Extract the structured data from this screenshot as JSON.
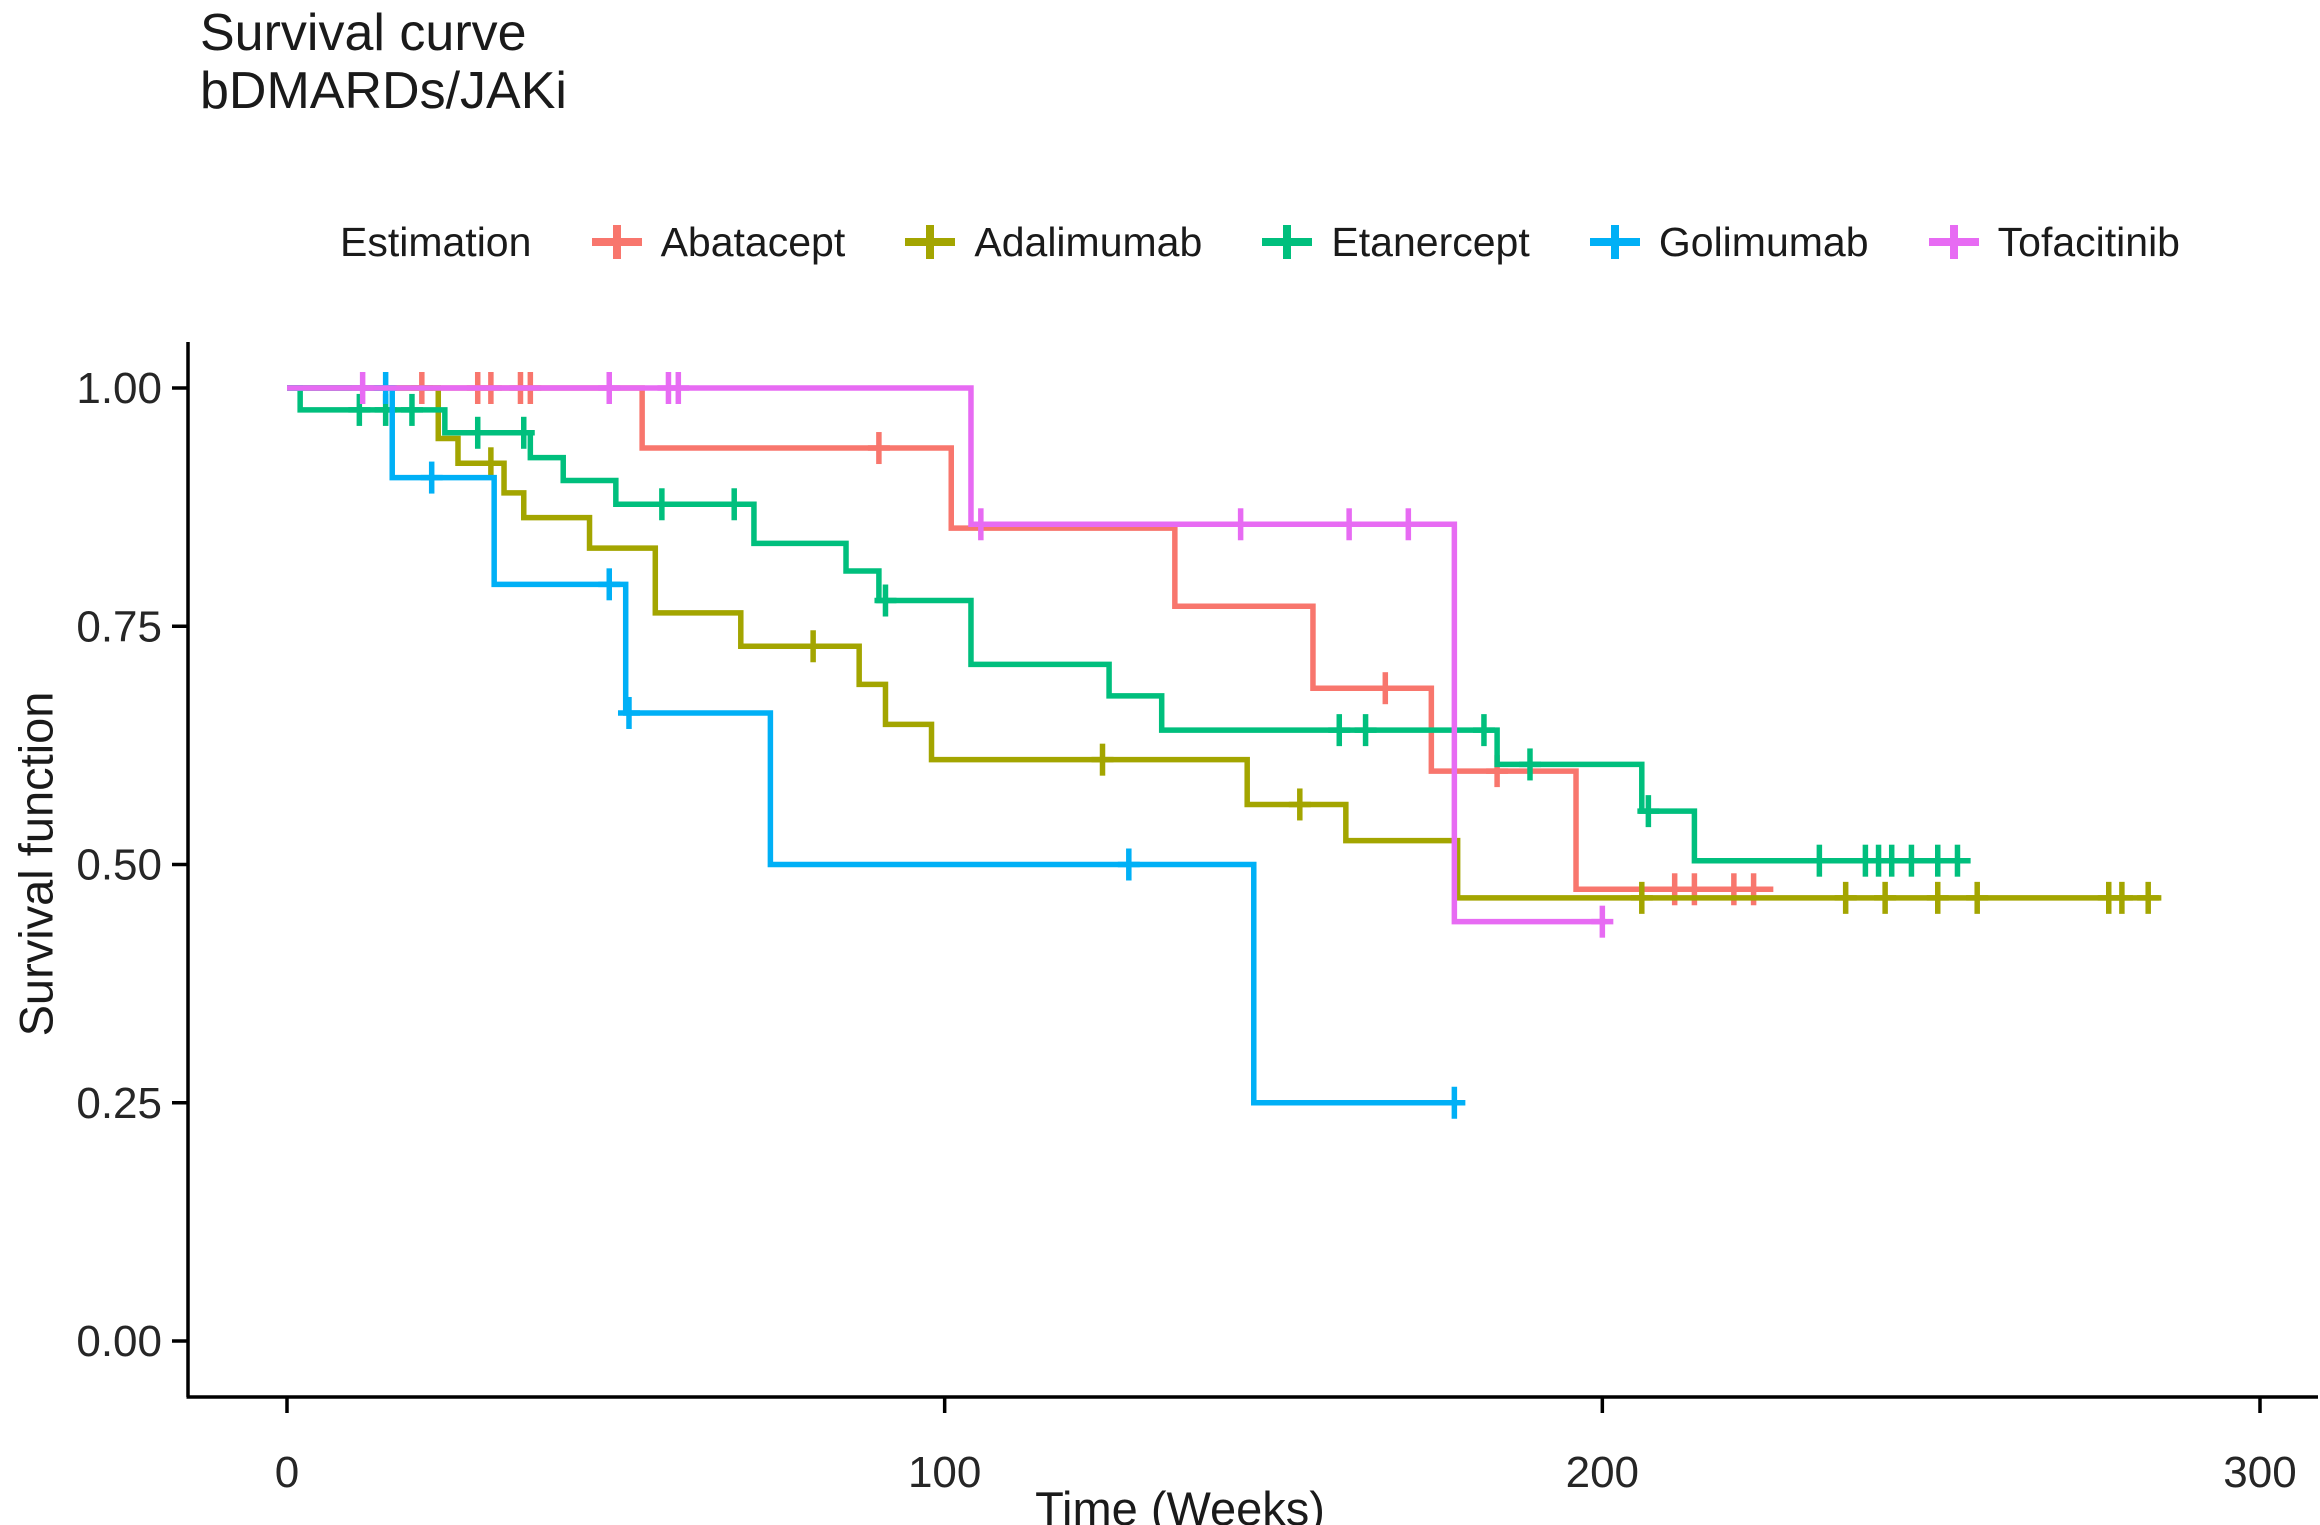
{
  "title": {
    "line1": "Survival curve",
    "line2": "bDMARDs/JAKi"
  },
  "legend": {
    "title": "Estimation",
    "items": [
      {
        "label": "Abatacept",
        "color": "#F8766D"
      },
      {
        "label": "Adalimumab",
        "color": "#A3A500"
      },
      {
        "label": "Etanercept",
        "color": "#00BF7D"
      },
      {
        "label": "Golimumab",
        "color": "#00B0F6"
      },
      {
        "label": "Tofacitinib",
        "color": "#E76BF3"
      }
    ]
  },
  "axes": {
    "x": {
      "label": "Time (Weeks)",
      "tick_labels": [
        "0",
        "100",
        "200",
        "300"
      ],
      "tick_values": [
        0,
        100,
        200,
        300
      ]
    },
    "y": {
      "label": "Survival function",
      "tick_labels": [
        "1.00",
        "0.75",
        "0.50",
        "0.25",
        "0.00"
      ],
      "tick_values": [
        1.0,
        0.75,
        0.5,
        0.25,
        0.0
      ]
    }
  },
  "chart_data": {
    "type": "line",
    "subtype": "kaplan-meier-step-curves",
    "title": "Survival curve bDMARDs/JAKi",
    "xlabel": "Time (Weeks)",
    "ylabel": "Survival function",
    "xlim": [
      0,
      310
    ],
    "ylim": [
      0,
      1.04
    ],
    "grid": false,
    "legend_position": "top",
    "censor_mark": "plus",
    "series": [
      {
        "name": "Abatacept",
        "color": "#F8766D",
        "steps": [
          [
            0,
            1.0
          ],
          [
            54,
            0.937
          ],
          [
            101,
            0.853
          ],
          [
            135,
            0.771
          ],
          [
            156,
            0.685
          ],
          [
            174,
            0.598
          ],
          [
            196,
            0.474
          ]
        ],
        "end_t": 226,
        "censors": [
          [
            20.5,
            1.0
          ],
          [
            29,
            1.0
          ],
          [
            31,
            1.0
          ],
          [
            35.5,
            1.0
          ],
          [
            37,
            1.0
          ],
          [
            90,
            0.937
          ],
          [
            167,
            0.685
          ],
          [
            184,
            0.598
          ],
          [
            211,
            0.474
          ],
          [
            214,
            0.474
          ],
          [
            220,
            0.474
          ],
          [
            223,
            0.474
          ]
        ]
      },
      {
        "name": "Adalimumab",
        "color": "#A3A500",
        "steps": [
          [
            0,
            1.0
          ],
          [
            23,
            0.947
          ],
          [
            26,
            0.921
          ],
          [
            33,
            0.89
          ],
          [
            36,
            0.864
          ],
          [
            46,
            0.832
          ],
          [
            56,
            0.764
          ],
          [
            69,
            0.729
          ],
          [
            87,
            0.689
          ],
          [
            91,
            0.647
          ],
          [
            98,
            0.61
          ],
          [
            146,
            0.563
          ],
          [
            161,
            0.525
          ],
          [
            178,
            0.465
          ]
        ],
        "end_t": 285,
        "censors": [
          [
            31,
            0.921
          ],
          [
            80,
            0.729
          ],
          [
            124,
            0.61
          ],
          [
            154,
            0.563
          ],
          [
            206,
            0.465
          ],
          [
            237,
            0.465
          ],
          [
            243,
            0.465
          ],
          [
            251,
            0.465
          ],
          [
            257,
            0.465
          ],
          [
            277,
            0.465
          ],
          [
            279,
            0.465
          ],
          [
            283,
            0.465
          ]
        ]
      },
      {
        "name": "Etanercept",
        "color": "#00BF7D",
        "steps": [
          [
            0,
            1.0
          ],
          [
            2,
            0.977
          ],
          [
            24,
            0.953
          ],
          [
            37,
            0.927
          ],
          [
            42,
            0.903
          ],
          [
            50,
            0.878
          ],
          [
            71,
            0.837
          ],
          [
            85,
            0.808
          ],
          [
            90,
            0.777
          ],
          [
            104,
            0.71
          ],
          [
            125,
            0.677
          ],
          [
            133,
            0.641
          ],
          [
            184,
            0.605
          ],
          [
            206,
            0.556
          ],
          [
            214,
            0.504
          ]
        ],
        "end_t": 256,
        "censors": [
          [
            11,
            0.977
          ],
          [
            15,
            0.977
          ],
          [
            19,
            0.977
          ],
          [
            29,
            0.953
          ],
          [
            36,
            0.953
          ],
          [
            57,
            0.878
          ],
          [
            68,
            0.878
          ],
          [
            91,
            0.777
          ],
          [
            160,
            0.641
          ],
          [
            164,
            0.641
          ],
          [
            182,
            0.641
          ],
          [
            189,
            0.605
          ],
          [
            207,
            0.556
          ],
          [
            233,
            0.504
          ],
          [
            240,
            0.504
          ],
          [
            242,
            0.504
          ],
          [
            244,
            0.504
          ],
          [
            247,
            0.504
          ],
          [
            251,
            0.504
          ],
          [
            254,
            0.504
          ]
        ]
      },
      {
        "name": "Golimumab",
        "color": "#00B0F6",
        "steps": [
          [
            0,
            1.0
          ],
          [
            16,
            0.906
          ],
          [
            31.5,
            0.794
          ],
          [
            51.5,
            0.659
          ],
          [
            73.5,
            0.5
          ],
          [
            147,
            0.25
          ]
        ],
        "end_t": 178,
        "censors": [
          [
            15,
            1.0
          ],
          [
            22,
            0.906
          ],
          [
            49,
            0.794
          ],
          [
            52,
            0.659
          ],
          [
            128,
            0.5
          ],
          [
            177.5,
            0.25
          ]
        ]
      },
      {
        "name": "Tofacitinib",
        "color": "#E76BF3",
        "steps": [
          [
            0,
            1.0
          ],
          [
            104,
            0.857
          ],
          [
            177.5,
            0.44
          ]
        ],
        "end_t": 200.5,
        "censors": [
          [
            11.5,
            1.0
          ],
          [
            49,
            1.0
          ],
          [
            58,
            1.0
          ],
          [
            59.5,
            1.0
          ],
          [
            105.5,
            0.857
          ],
          [
            145,
            0.857
          ],
          [
            161.5,
            0.857
          ],
          [
            170.5,
            0.857
          ],
          [
            200,
            0.44
          ]
        ]
      }
    ]
  }
}
